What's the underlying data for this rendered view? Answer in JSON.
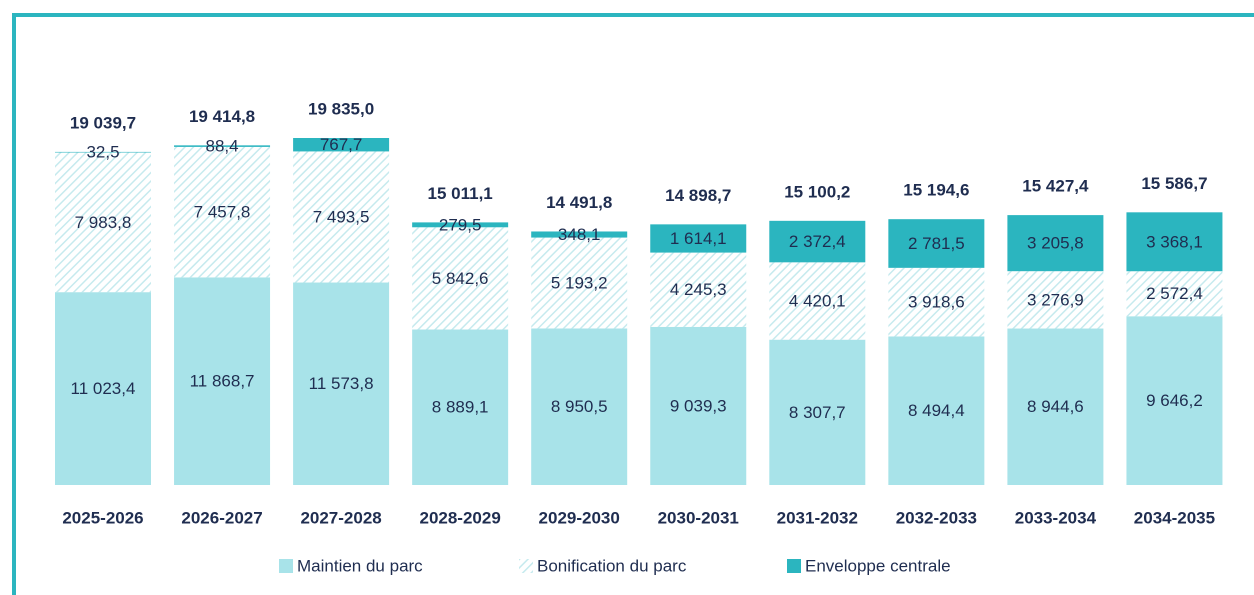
{
  "chart_data": {
    "type": "stacked_bar",
    "categories": [
      "2025-2026",
      "2026-2027",
      "2027-2028",
      "2028-2029",
      "2029-2030",
      "2030-2031",
      "2031-2032",
      "2032-2033",
      "2033-2034",
      "2034-2035"
    ],
    "series": [
      {
        "name": "Maintien du parc",
        "color": "#a8e3e9",
        "values": [
          11023.4,
          11868.7,
          11573.8,
          8889.1,
          8950.5,
          9039.3,
          8307.7,
          8494.4,
          8944.6,
          9646.2
        ],
        "value_labels": [
          "11 023,4",
          "11 868,7",
          "11 573,8",
          "8 889,1",
          "8 950,5",
          "9 039,3",
          "8 307,7",
          "8 494,4",
          "8 944,6",
          "9 646,2"
        ]
      },
      {
        "name": "Bonification du parc",
        "color": "#c6eaee",
        "hatch": true,
        "values": [
          7983.8,
          7457.8,
          7493.5,
          5842.6,
          5193.2,
          4245.3,
          4420.1,
          3918.6,
          3276.9,
          2572.4
        ],
        "value_labels": [
          "7 983,8",
          "7 457,8",
          "7 493,5",
          "5 842,6",
          "5 193,2",
          "4 245,3",
          "4 420,1",
          "3 918,6",
          "3 276,9",
          "2 572,4"
        ]
      },
      {
        "name": "Enveloppe centrale",
        "color": "#2bb5bf",
        "values": [
          32.5,
          88.4,
          767.7,
          279.5,
          348.1,
          1614.1,
          2372.4,
          2781.5,
          3205.8,
          3368.1
        ],
        "value_labels": [
          "32,5",
          "88,4",
          "767,7",
          "279,5",
          "348,1",
          "1 614,1",
          "2 372,4",
          "2 781,5",
          "3 205,8",
          "3 368,1"
        ]
      }
    ],
    "totals": [
      19039.7,
      19414.8,
      19835.0,
      15011.1,
      14491.8,
      14898.7,
      15100.2,
      15194.6,
      15427.4,
      15586.7
    ],
    "total_labels": [
      "19 039,7",
      "19 414,8",
      "19 835,0",
      "15 011,1",
      "14 491,8",
      "14 898,7",
      "15 100,2",
      "15 194,6",
      "15 427,4",
      "15 586,7"
    ],
    "legend": "bottom"
  }
}
